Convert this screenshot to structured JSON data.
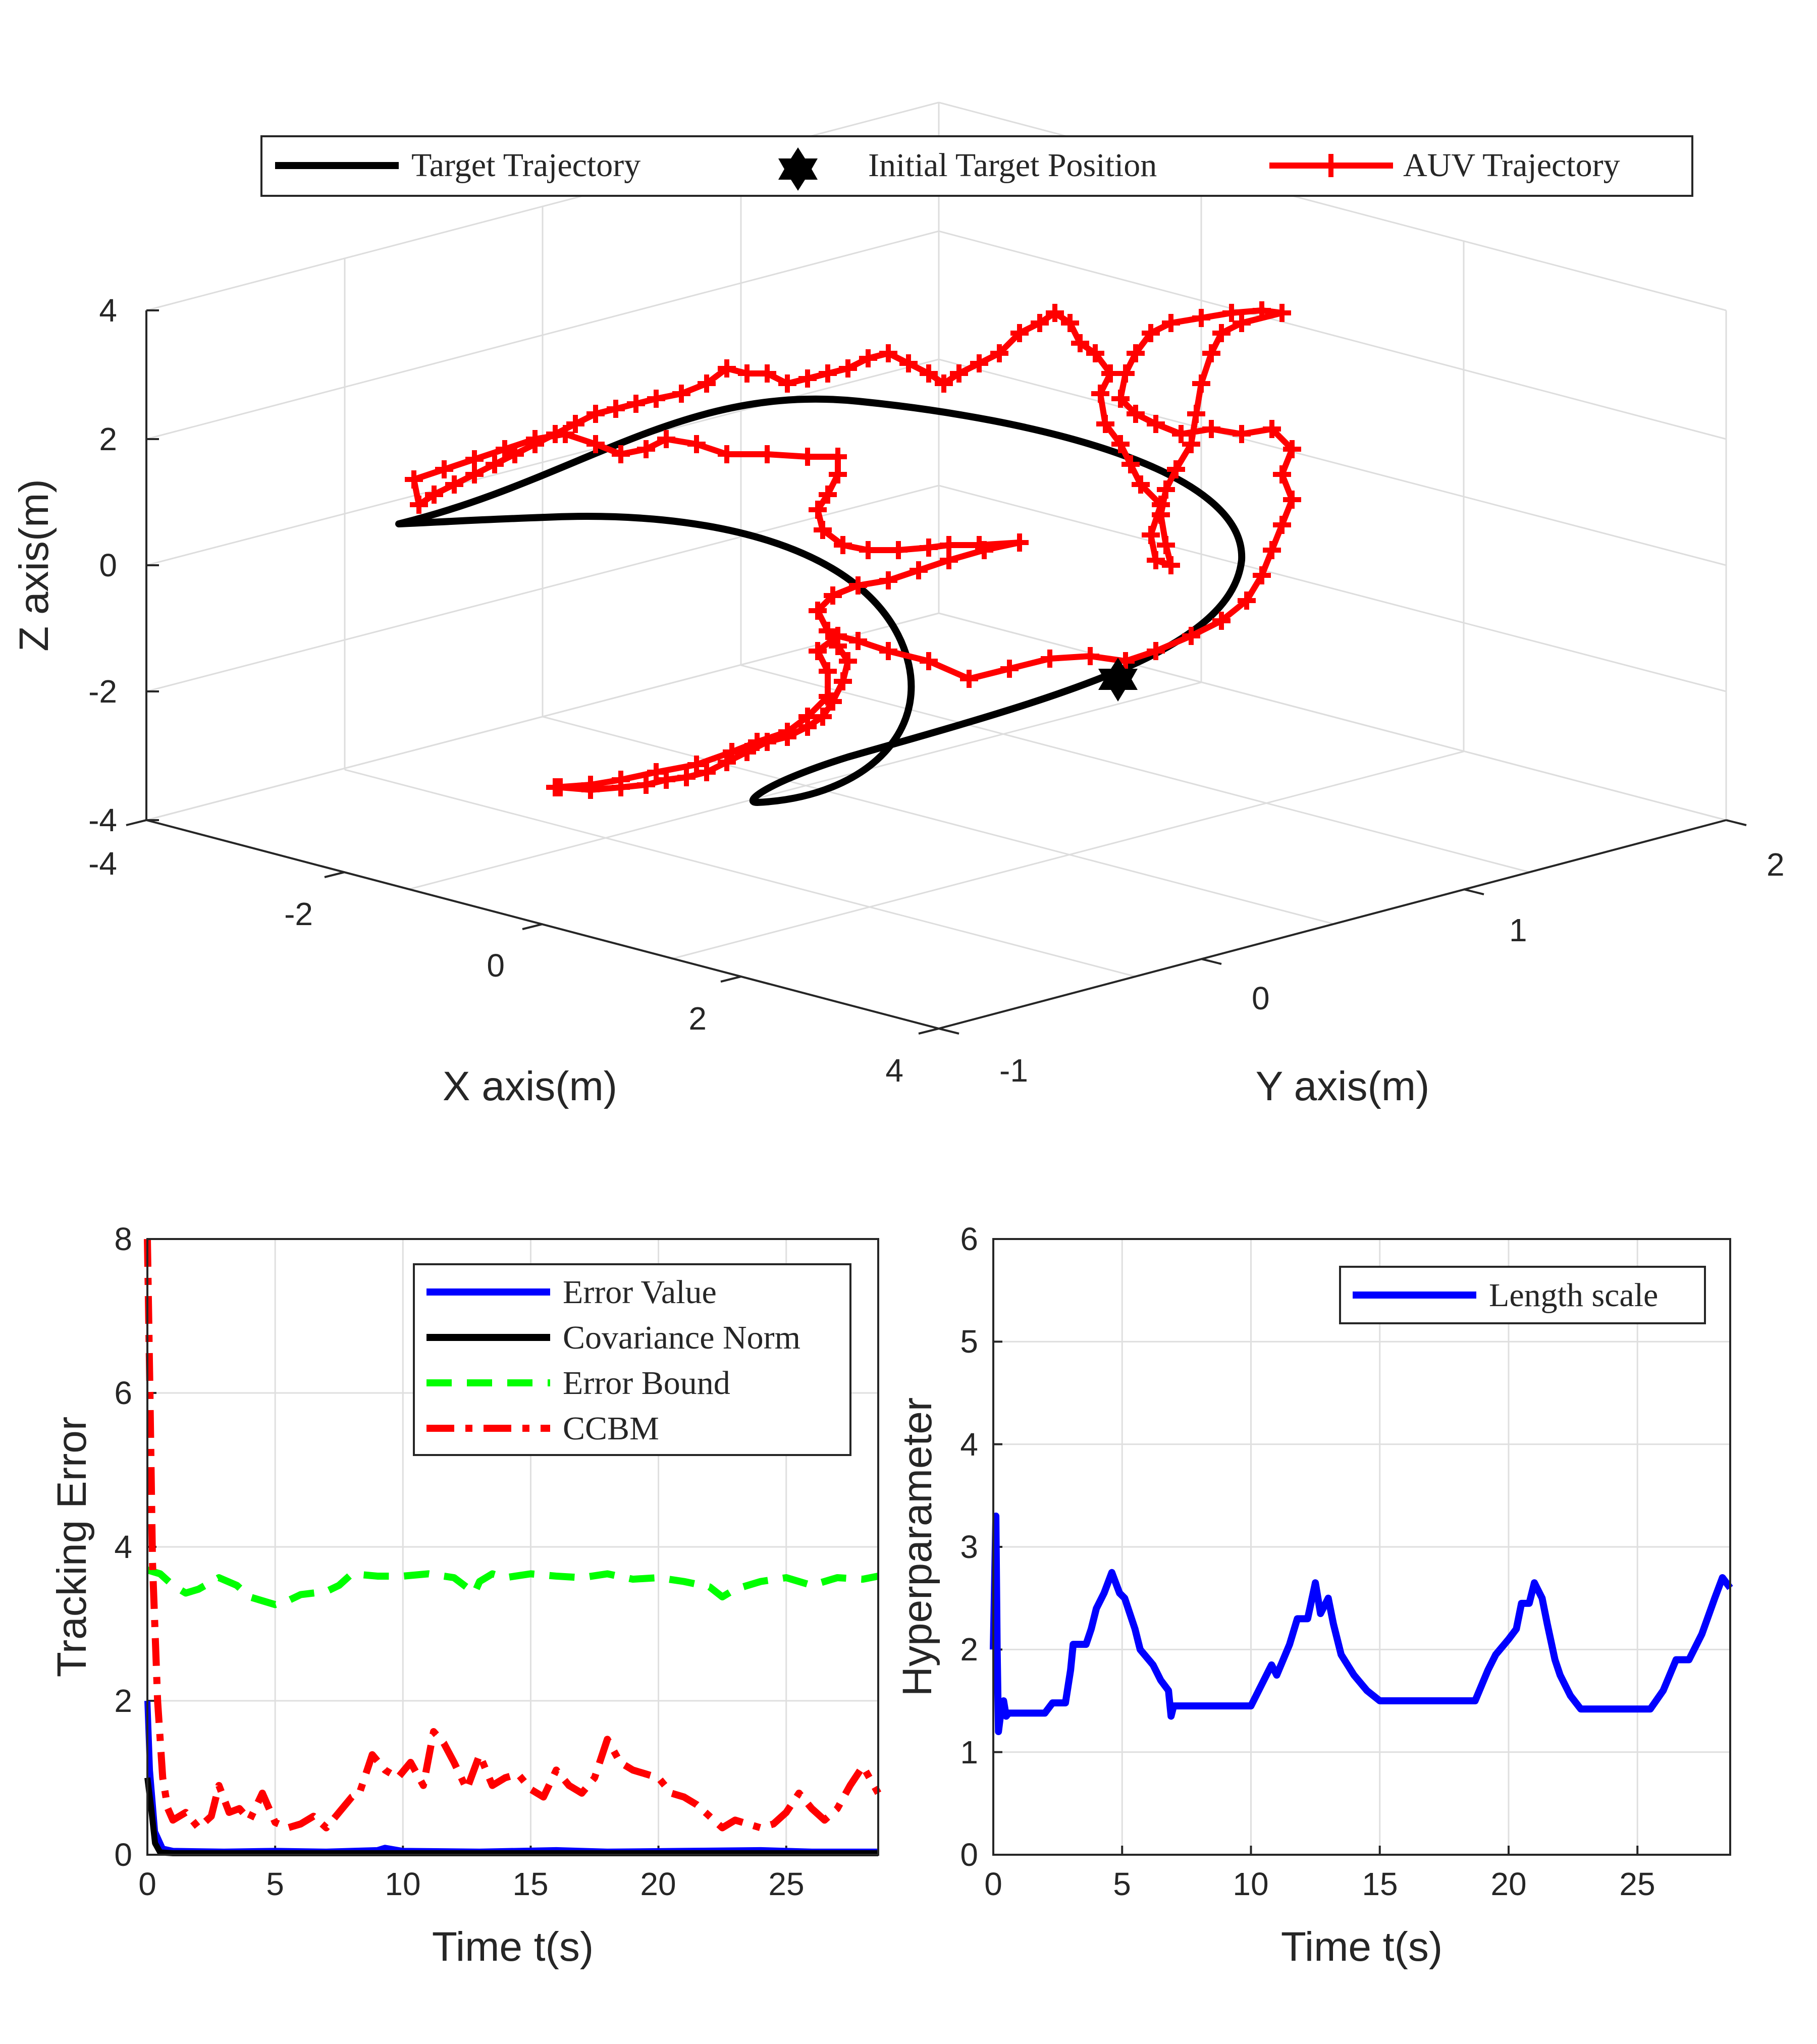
{
  "figure": {
    "top": {
      "xlabel": "X axis(m)",
      "ylabel": "Y axis(m)",
      "zlabel": "Z axis(m)",
      "xticks": [
        "-4",
        "-2",
        "0",
        "2",
        "4"
      ],
      "yticks": [
        "-1",
        "0",
        "1",
        "2"
      ],
      "zticks": [
        "-4",
        "-2",
        "0",
        "2",
        "4"
      ],
      "legend": [
        "Target Trajectory",
        "Initial Target Position",
        "AUV Trajectory"
      ]
    },
    "left": {
      "xlabel": "Time t(s)",
      "ylabel": "Tracking Error",
      "xticks": [
        "0",
        "5",
        "10",
        "15",
        "20",
        "25"
      ],
      "yticks": [
        "0",
        "2",
        "4",
        "6",
        "8"
      ],
      "legend": [
        "Error Value",
        "Covariance Norm",
        "Error Bound",
        "CCBM"
      ]
    },
    "right": {
      "xlabel": "Time t(s)",
      "ylabel": "Hyperparameter",
      "xticks": [
        "0",
        "5",
        "10",
        "15",
        "20",
        "25"
      ],
      "yticks": [
        "0",
        "1",
        "2",
        "3",
        "4",
        "5",
        "6"
      ],
      "legend": [
        "Length scale"
      ]
    }
  },
  "colors": {
    "target": "#000000",
    "auv": "#ff0000",
    "error": "#0000ff",
    "cov": "#000000",
    "bound": "#00ff00",
    "ccbm": "#ff0000",
    "length": "#0000ff"
  },
  "chart_data": [
    {
      "type": "line",
      "subtype": "3d",
      "title": "",
      "xlabel": "X axis(m)",
      "ylabel": "Y axis(m)",
      "zlabel": "Z axis(m)",
      "xlim": [
        -4,
        4
      ],
      "ylim": [
        -1,
        2
      ],
      "zlim": [
        -4,
        4
      ],
      "grid": true,
      "legend_position": "top",
      "series": [
        {
          "name": "Target Trajectory",
          "style": "solid",
          "note": "closed loop curve"
        },
        {
          "name": "Initial Target Position",
          "style": "hexagram marker",
          "x": 2.2,
          "y": 0.45,
          "z": -2.0
        },
        {
          "name": "AUV Trajectory",
          "style": "solid with plus markers",
          "note": "noisy path following the target loop"
        }
      ]
    },
    {
      "type": "line",
      "title": "",
      "xlabel": "Time t(s)",
      "ylabel": "Tracking Error",
      "xlim": [
        0,
        28.6
      ],
      "ylim": [
        0,
        8
      ],
      "grid": true,
      "legend_position": "top-right",
      "series": [
        {
          "name": "Error Value",
          "style": "solid",
          "x": [
            0,
            0.1,
            0.3,
            0.6,
            1,
            3,
            5,
            7,
            9,
            9.3,
            10,
            13,
            16,
            18,
            21,
            24,
            26,
            28.6
          ],
          "y": [
            2.0,
            1.1,
            0.3,
            0.08,
            0.05,
            0.04,
            0.05,
            0.04,
            0.06,
            0.09,
            0.05,
            0.04,
            0.06,
            0.04,
            0.05,
            0.06,
            0.04,
            0.04
          ]
        },
        {
          "name": "Covariance Norm",
          "style": "solid",
          "x": [
            0,
            0.15,
            0.3,
            0.5,
            1,
            5,
            10,
            15,
            20,
            25,
            28.6
          ],
          "y": [
            1.0,
            0.6,
            0.15,
            0.03,
            0.02,
            0.02,
            0.02,
            0.02,
            0.02,
            0.02,
            0.02
          ]
        },
        {
          "name": "Error Bound",
          "style": "dashed",
          "x": [
            0,
            0.5,
            1,
            1.5,
            2,
            2.8,
            3.5,
            4,
            4.5,
            5,
            5.5,
            6,
            6.5,
            7,
            7.5,
            8,
            9,
            10,
            11,
            12,
            12.8,
            13,
            13.5,
            14,
            15,
            16,
            17,
            18,
            19,
            20,
            21,
            22,
            22.5,
            23,
            24,
            25,
            26,
            27,
            28,
            28.6
          ],
          "y": [
            3.7,
            3.65,
            3.5,
            3.4,
            3.45,
            3.6,
            3.5,
            3.35,
            3.3,
            3.25,
            3.3,
            3.38,
            3.4,
            3.42,
            3.5,
            3.65,
            3.62,
            3.62,
            3.65,
            3.6,
            3.4,
            3.55,
            3.65,
            3.6,
            3.65,
            3.62,
            3.6,
            3.65,
            3.58,
            3.6,
            3.55,
            3.48,
            3.35,
            3.45,
            3.55,
            3.6,
            3.5,
            3.6,
            3.58,
            3.62
          ]
        },
        {
          "name": "CCBM",
          "style": "dash-dot",
          "x": [
            0,
            0.1,
            0.2,
            0.4,
            0.6,
            0.8,
            1,
            1.5,
            2,
            2.5,
            2.8,
            3.2,
            3.6,
            4,
            4.5,
            5,
            5.5,
            6,
            6.5,
            7,
            7.5,
            8,
            8.3,
            8.8,
            9.3,
            9.8,
            10.3,
            10.8,
            11.2,
            11.6,
            12,
            12.5,
            13,
            13.5,
            14,
            14.5,
            15,
            15.5,
            16,
            16.5,
            17,
            17.5,
            18,
            18.5,
            19,
            19.5,
            20,
            20.5,
            21,
            21.5,
            22,
            22.5,
            23,
            23.5,
            24,
            24.5,
            25,
            25.5,
            26,
            26.5,
            27,
            27.5,
            28,
            28.6
          ],
          "y": [
            8.0,
            6.0,
            3.8,
            2.0,
            1.0,
            0.6,
            0.45,
            0.55,
            0.35,
            0.5,
            0.9,
            0.55,
            0.6,
            0.45,
            0.8,
            0.42,
            0.35,
            0.4,
            0.5,
            0.35,
            0.55,
            0.75,
            0.8,
            1.3,
            1.1,
            1.0,
            1.2,
            0.9,
            1.6,
            1.45,
            1.2,
            0.85,
            1.3,
            0.9,
            1.0,
            1.05,
            0.85,
            0.75,
            1.1,
            0.9,
            0.8,
            1.0,
            1.5,
            1.2,
            1.1,
            1.05,
            1.0,
            0.8,
            0.75,
            0.65,
            0.5,
            0.35,
            0.45,
            0.4,
            0.35,
            0.4,
            0.55,
            0.8,
            0.6,
            0.45,
            0.6,
            0.9,
            1.15,
            0.8
          ]
        }
      ]
    },
    {
      "type": "line",
      "title": "",
      "xlabel": "Time t(s)",
      "ylabel": "Hyperparameter",
      "xlim": [
        0,
        28.6
      ],
      "ylim": [
        0,
        6
      ],
      "grid": true,
      "legend_position": "top-right",
      "series": [
        {
          "name": "Length scale",
          "style": "solid",
          "x": [
            0,
            0.1,
            0.15,
            0.2,
            0.3,
            0.4,
            0.5,
            0.6,
            1,
            2,
            2.3,
            2.8,
            3,
            3.1,
            3.6,
            3.8,
            4,
            4.3,
            4.6,
            4.9,
            5.1,
            5.5,
            5.7,
            6.2,
            6.5,
            6.8,
            6.9,
            7,
            7.3,
            8,
            9,
            10,
            10.3,
            10.8,
            11,
            11.5,
            11.8,
            12.2,
            12.5,
            12.7,
            13,
            13.2,
            13.5,
            14,
            14.5,
            15,
            16,
            17,
            18,
            18.7,
            19.2,
            19.5,
            20,
            20.3,
            20.5,
            20.8,
            21,
            21.3,
            21.5,
            21.8,
            22,
            22.4,
            22.8,
            23,
            23.5,
            24,
            25,
            25.5,
            26,
            26.5,
            27,
            27.5,
            28,
            28.3,
            28.6
          ],
          "y": [
            2.0,
            3.3,
            2.0,
            1.2,
            1.4,
            1.5,
            1.35,
            1.38,
            1.38,
            1.38,
            1.48,
            1.48,
            1.8,
            2.05,
            2.05,
            2.2,
            2.4,
            2.55,
            2.75,
            2.55,
            2.5,
            2.2,
            2.0,
            1.85,
            1.7,
            1.6,
            1.35,
            1.45,
            1.45,
            1.45,
            1.45,
            1.45,
            1.6,
            1.85,
            1.75,
            2.05,
            2.3,
            2.3,
            2.65,
            2.35,
            2.5,
            2.25,
            1.95,
            1.75,
            1.6,
            1.5,
            1.5,
            1.5,
            1.5,
            1.5,
            1.8,
            1.95,
            2.1,
            2.2,
            2.45,
            2.45,
            2.65,
            2.5,
            2.25,
            1.9,
            1.75,
            1.55,
            1.42,
            1.42,
            1.42,
            1.42,
            1.42,
            1.42,
            1.6,
            1.9,
            1.9,
            2.15,
            2.5,
            2.7,
            2.6
          ]
        }
      ]
    }
  ]
}
